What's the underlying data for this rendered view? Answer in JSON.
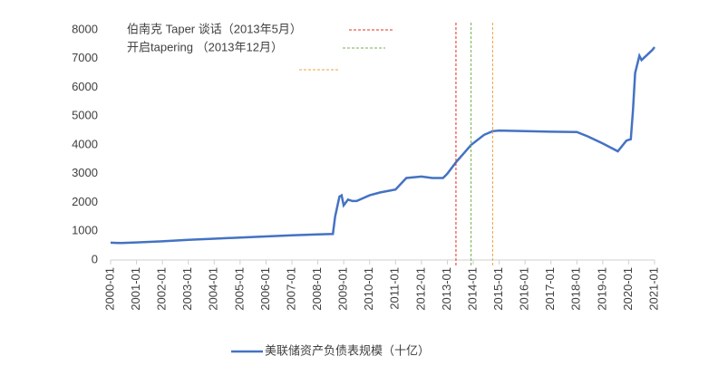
{
  "chart_data": {
    "type": "line",
    "x": [
      "2000-01",
      "2000-06",
      "2001-01",
      "2002-01",
      "2003-01",
      "2004-01",
      "2005-01",
      "2006-01",
      "2007-01",
      "2008-01",
      "2008-08",
      "2008-09",
      "2008-11",
      "2008-12",
      "2009-01",
      "2009-03",
      "2009-05",
      "2009-07",
      "2010-01",
      "2010-06",
      "2011-01",
      "2011-06",
      "2012-01",
      "2012-06",
      "2012-11",
      "2013-01",
      "2013-05",
      "2013-12",
      "2014-06",
      "2014-10",
      "2015-01",
      "2016-01",
      "2017-01",
      "2018-01",
      "2018-06",
      "2019-01",
      "2019-08",
      "2019-12",
      "2020-02",
      "2020-03",
      "2020-04",
      "2020-06",
      "2020-07",
      "2020-12",
      "2021-01"
    ],
    "series": [
      {
        "name": "美联储资产负债表规模（十亿）",
        "color": "#4472c4",
        "values": [
          600,
          590,
          610,
          650,
          700,
          740,
          780,
          820,
          860,
          890,
          905,
          1500,
          2200,
          2250,
          1900,
          2100,
          2050,
          2050,
          2250,
          2350,
          2450,
          2850,
          2900,
          2850,
          2850,
          3000,
          3400,
          4000,
          4350,
          4480,
          4500,
          4480,
          4460,
          4450,
          4300,
          4050,
          3780,
          4150,
          4200,
          5200,
          6500,
          7100,
          6950,
          7300,
          7400
        ]
      }
    ],
    "xlim": [
      "2000-01",
      "2021-01"
    ],
    "xticks": [
      "2000-01",
      "2001-01",
      "2002-01",
      "2003-01",
      "2004-01",
      "2005-01",
      "2006-01",
      "2007-01",
      "2008-01",
      "2009-01",
      "2010-01",
      "2011-01",
      "2012-01",
      "2013-01",
      "2014-01",
      "2015-01",
      "2016-01",
      "2017-01",
      "2018-01",
      "2019-01",
      "2020-01",
      "2021-01"
    ],
    "ylim": [
      0,
      8000
    ],
    "yticks": [
      0,
      1000,
      2000,
      3000,
      4000,
      5000,
      6000,
      7000,
      8000
    ],
    "vlines": [
      {
        "x": "2013-05",
        "label": "伯南克 Taper 谈话（2013年5月）",
        "color": "#e03020"
      },
      {
        "x": "2013-12",
        "label": "开启tapering （2013年12月）",
        "color": "#70b050"
      },
      {
        "x": "2014-10",
        "label": null,
        "color": "#f0a040"
      }
    ],
    "legend": "bottom"
  }
}
